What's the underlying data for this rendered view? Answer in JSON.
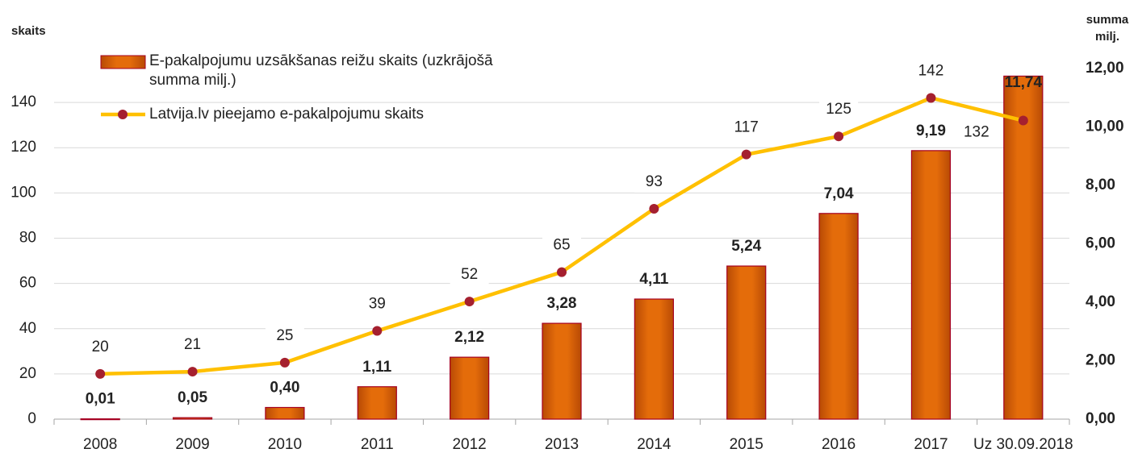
{
  "chart_data": {
    "type": "bar",
    "ylabel": "skaits",
    "y2label": "summa milj.",
    "categories": [
      "2008",
      "2009",
      "2010",
      "2011",
      "2012",
      "2013",
      "2014",
      "2015",
      "2016",
      "2017",
      "Uz 30.09.2018"
    ],
    "series": [
      {
        "name": "E-pakalpojumu uzsākšanas reižu skaits (uzkrājošā summa milj.)",
        "type": "bar",
        "axis": "y2",
        "color": "#e46c0a",
        "values": [
          0.01,
          0.05,
          0.4,
          1.11,
          2.12,
          3.28,
          4.11,
          5.24,
          7.04,
          9.19,
          11.74
        ],
        "value_labels": [
          "0,01",
          "0,05",
          "0,40",
          "1,11",
          "2,12",
          "3,28",
          "4,11",
          "5,24",
          "7,04",
          "9,19",
          "11,74"
        ]
      },
      {
        "name": "Latvija.lv pieejamo e-pakalpojumu skaits",
        "type": "line",
        "color": "#ffc000",
        "values": [
          20,
          21,
          25,
          39,
          52,
          65,
          93,
          117,
          125,
          142,
          132
        ]
      }
    ],
    "ylim": [
      0,
      155
    ],
    "yticks": [
      0,
      20,
      40,
      60,
      80,
      100,
      120,
      140
    ],
    "y2lim": [
      0,
      12
    ],
    "y2ticks": [
      {
        "value": 0,
        "label": "0,00"
      },
      {
        "value": 2,
        "label": "2,00"
      },
      {
        "value": 4,
        "label": "4,00"
      },
      {
        "value": 6,
        "label": "6,00"
      },
      {
        "value": 8,
        "label": "8,00"
      },
      {
        "value": 10,
        "label": "10,00"
      },
      {
        "value": 12,
        "label": "12,00"
      }
    ],
    "grid": true,
    "legend": "top-left"
  }
}
